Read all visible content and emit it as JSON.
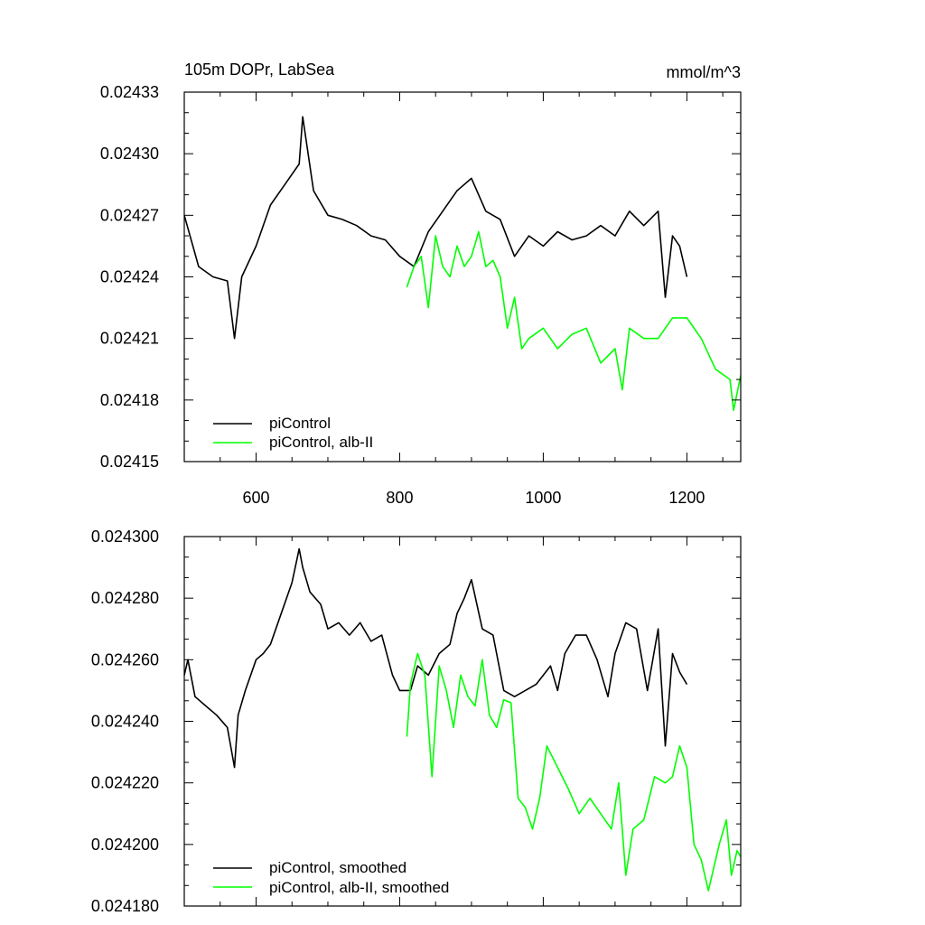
{
  "chart_data": [
    {
      "type": "line",
      "title": "105m DOPr, LabSea",
      "units": "mmol/m^3",
      "xlim": [
        500,
        1275
      ],
      "ylim": [
        0.02415,
        0.02433
      ],
      "x_ticks": [
        600,
        800,
        1000,
        1200
      ],
      "x_tick_labels": [
        "600",
        "800",
        "1000",
        "1200"
      ],
      "y_ticks": [
        0.02415,
        0.02418,
        0.02421,
        0.02424,
        0.02427,
        0.0243,
        0.02433
      ],
      "y_tick_labels": [
        "0.02415",
        "0.02418",
        "0.02421",
        "0.02424",
        "0.02427",
        "0.02430",
        "0.02433"
      ],
      "legend_position": "bottom-left",
      "grid": false,
      "series": [
        {
          "name": "piControl",
          "color": "#000000",
          "x": [
            500,
            520,
            540,
            560,
            570,
            580,
            600,
            620,
            640,
            660,
            665,
            680,
            700,
            720,
            740,
            760,
            780,
            800,
            820,
            840,
            860,
            880,
            900,
            920,
            940,
            960,
            980,
            1000,
            1020,
            1040,
            1060,
            1080,
            1100,
            1120,
            1140,
            1160,
            1170,
            1180,
            1190,
            1200
          ],
          "values": [
            0.02427,
            0.024245,
            0.02424,
            0.024238,
            0.02421,
            0.02424,
            0.024255,
            0.024275,
            0.024285,
            0.024295,
            0.024318,
            0.024282,
            0.02427,
            0.024268,
            0.024265,
            0.02426,
            0.024258,
            0.02425,
            0.024245,
            0.024262,
            0.024272,
            0.024282,
            0.024288,
            0.024272,
            0.024268,
            0.02425,
            0.02426,
            0.024255,
            0.024262,
            0.024258,
            0.02426,
            0.024265,
            0.02426,
            0.024272,
            0.024265,
            0.024272,
            0.02423,
            0.02426,
            0.024255,
            0.02424
          ]
        },
        {
          "name": "piControl, alb-II",
          "color": "#00ff00",
          "x": [
            810,
            820,
            830,
            840,
            850,
            860,
            870,
            880,
            890,
            900,
            910,
            920,
            930,
            940,
            950,
            960,
            970,
            980,
            1000,
            1020,
            1040,
            1060,
            1080,
            1100,
            1110,
            1120,
            1140,
            1160,
            1180,
            1200,
            1220,
            1240,
            1260,
            1265,
            1275
          ],
          "values": [
            0.024235,
            0.024245,
            0.02425,
            0.024225,
            0.02426,
            0.024245,
            0.02424,
            0.024255,
            0.024245,
            0.02425,
            0.024262,
            0.024245,
            0.024248,
            0.02424,
            0.024215,
            0.02423,
            0.024205,
            0.02421,
            0.024215,
            0.024205,
            0.024212,
            0.024215,
            0.024198,
            0.024205,
            0.024185,
            0.024215,
            0.02421,
            0.02421,
            0.02422,
            0.02422,
            0.02421,
            0.024195,
            0.02419,
            0.024175,
            0.024192
          ]
        }
      ]
    },
    {
      "type": "line",
      "xlim": [
        500,
        1275
      ],
      "ylim": [
        0.02418,
        0.0243
      ],
      "x_ticks": [
        600,
        800,
        1000,
        1200
      ],
      "y_ticks": [
        0.02418,
        0.0242,
        0.02422,
        0.02424,
        0.02426,
        0.02428,
        0.0243
      ],
      "y_tick_labels": [
        "0.024180",
        "0.024200",
        "0.024220",
        "0.024240",
        "0.024260",
        "0.024280",
        "0.024300"
      ],
      "legend_position": "bottom-left",
      "grid": false,
      "series": [
        {
          "name": "piControl, smoothed",
          "color": "#000000",
          "x": [
            500,
            505,
            515,
            530,
            545,
            560,
            570,
            575,
            585,
            600,
            610,
            620,
            635,
            650,
            660,
            665,
            675,
            690,
            700,
            715,
            730,
            745,
            760,
            775,
            790,
            800,
            815,
            825,
            840,
            855,
            870,
            880,
            890,
            900,
            915,
            930,
            945,
            960,
            975,
            990,
            1010,
            1020,
            1030,
            1045,
            1060,
            1075,
            1090,
            1100,
            1115,
            1130,
            1145,
            1160,
            1170,
            1180,
            1190,
            1200
          ],
          "values": [
            0.024255,
            0.02426,
            0.024248,
            0.024245,
            0.024242,
            0.024238,
            0.024225,
            0.024242,
            0.02425,
            0.02426,
            0.024262,
            0.024265,
            0.024275,
            0.024285,
            0.024296,
            0.02429,
            0.024282,
            0.024278,
            0.02427,
            0.024272,
            0.024268,
            0.024272,
            0.024266,
            0.024268,
            0.024255,
            0.02425,
            0.02425,
            0.024258,
            0.024255,
            0.024262,
            0.024265,
            0.024275,
            0.02428,
            0.024286,
            0.02427,
            0.024268,
            0.02425,
            0.024248,
            0.02425,
            0.024252,
            0.024258,
            0.02425,
            0.024262,
            0.024268,
            0.024268,
            0.02426,
            0.024248,
            0.024262,
            0.024272,
            0.02427,
            0.02425,
            0.02427,
            0.024232,
            0.024262,
            0.024256,
            0.024252
          ]
        },
        {
          "name": "piControl, alb-II, smoothed",
          "color": "#00ff00",
          "x": [
            810,
            815,
            825,
            835,
            845,
            855,
            865,
            875,
            885,
            895,
            905,
            915,
            925,
            935,
            945,
            955,
            965,
            975,
            985,
            995,
            1005,
            1020,
            1035,
            1050,
            1065,
            1080,
            1095,
            1105,
            1115,
            1125,
            1140,
            1155,
            1170,
            1180,
            1190,
            1200,
            1210,
            1220,
            1230,
            1245,
            1255,
            1262,
            1270,
            1275
          ],
          "values": [
            0.024235,
            0.024252,
            0.024262,
            0.024255,
            0.024222,
            0.024258,
            0.02425,
            0.024238,
            0.024255,
            0.024248,
            0.024245,
            0.02426,
            0.024242,
            0.024238,
            0.024247,
            0.024246,
            0.024215,
            0.024212,
            0.024205,
            0.024215,
            0.024232,
            0.024225,
            0.024218,
            0.02421,
            0.024215,
            0.02421,
            0.024205,
            0.02422,
            0.02419,
            0.024205,
            0.024208,
            0.024222,
            0.02422,
            0.024222,
            0.024232,
            0.024225,
            0.0242,
            0.024195,
            0.024185,
            0.0242,
            0.024208,
            0.02419,
            0.024198,
            0.024196
          ]
        }
      ]
    }
  ]
}
